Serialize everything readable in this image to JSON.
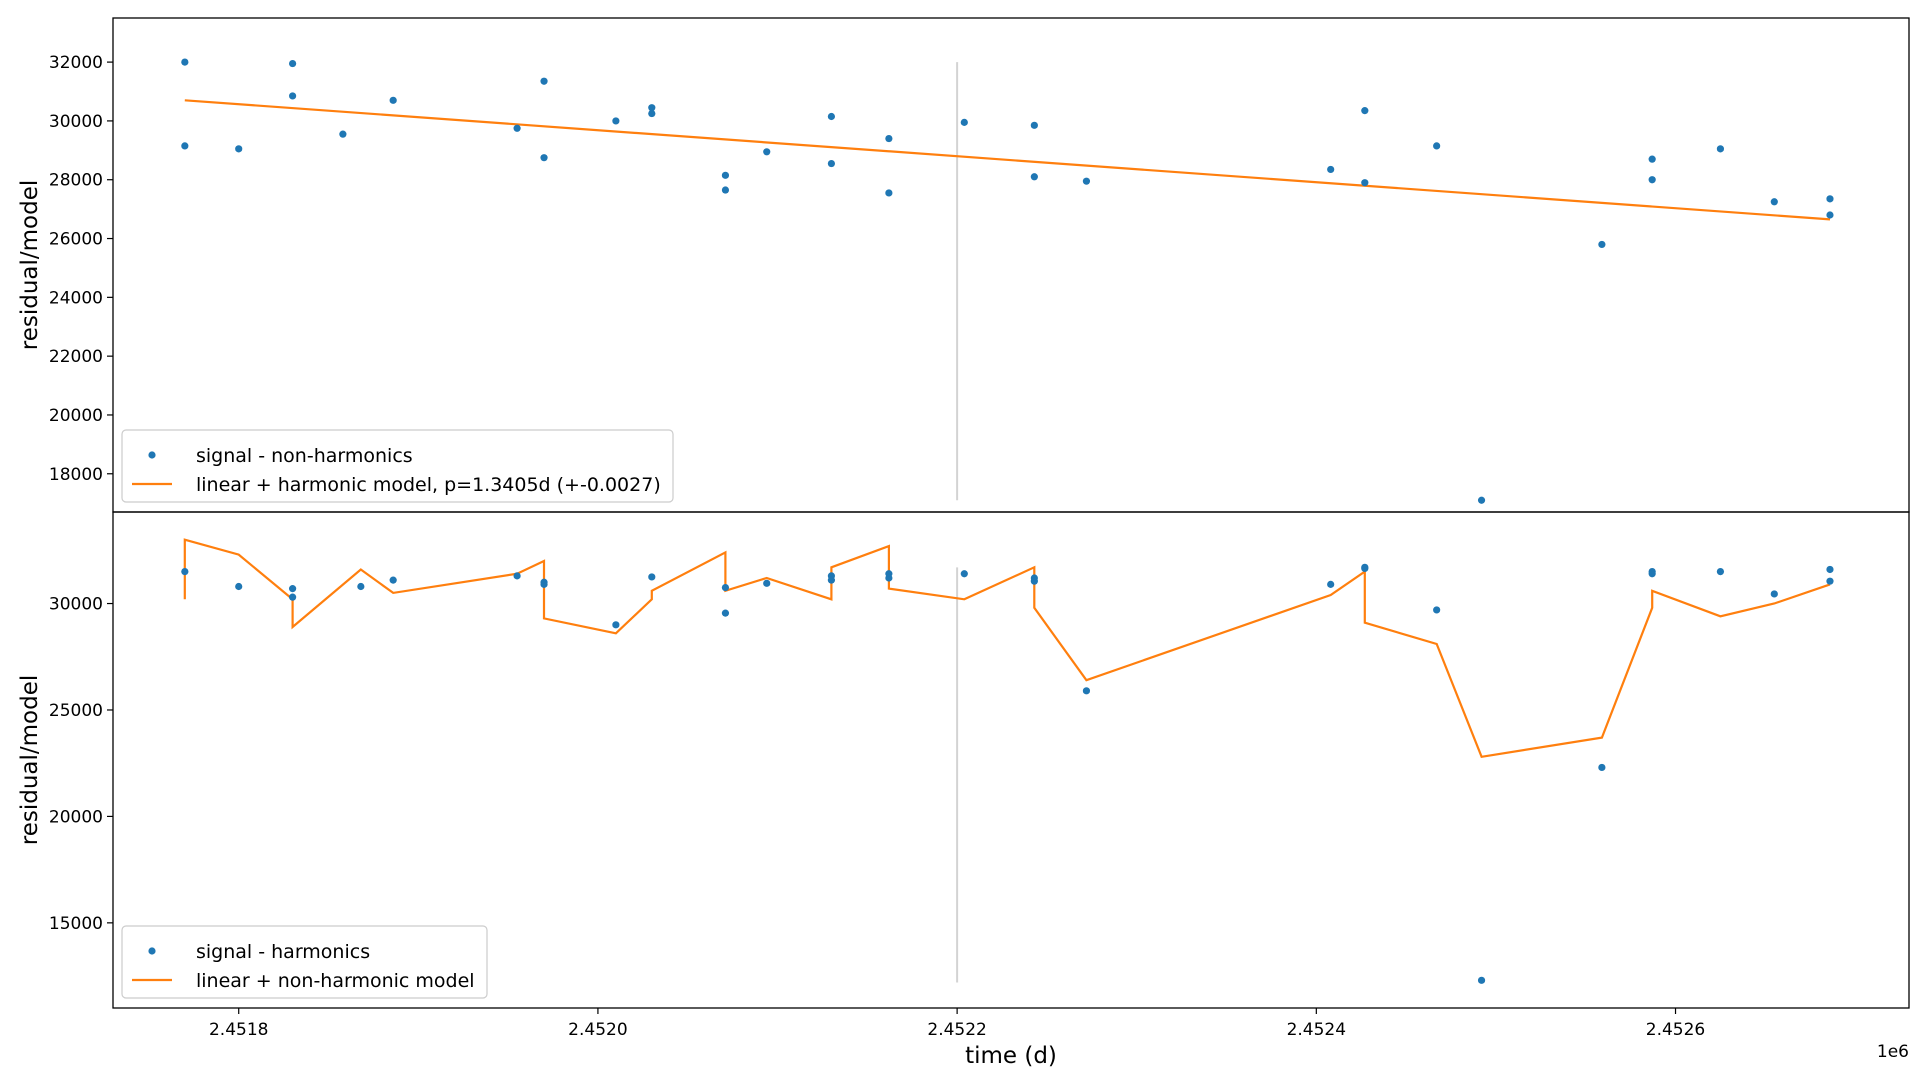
{
  "chart_data": [
    {
      "type": "scatter",
      "panel": "top",
      "xlabel": "",
      "ylabel": "residual/model",
      "xlim": [
        2451730,
        2452730
      ],
      "ylim": [
        16700,
        33500
      ],
      "yticks": [
        18000,
        20000,
        22000,
        24000,
        26000,
        28000,
        30000,
        32000
      ],
      "ytick_labels": [
        "18000",
        "20000",
        "22000",
        "24000",
        "26000",
        "28000",
        "30000",
        "32000"
      ],
      "vline": {
        "x": 2452200,
        "y_from": 17100,
        "y_to": 32000,
        "color": "#d3d3d3"
      },
      "legend_placement": "lower-left",
      "series": [
        {
          "name": "signal - non-harmonics",
          "kind": "scatter",
          "color": "#1f77b4",
          "x": [
            2451770,
            2451770,
            2451800,
            2451830,
            2451830,
            2451858,
            2451886,
            2451955,
            2451970,
            2451970,
            2452010,
            2452030,
            2452030,
            2452071,
            2452071,
            2452094,
            2452130,
            2452130,
            2452162,
            2452162,
            2452204,
            2452243,
            2452243,
            2452272,
            2452408,
            2452427,
            2452427,
            2452467,
            2452492,
            2452559,
            2452587,
            2452587,
            2452625,
            2452655,
            2452686,
            2452686
          ],
          "y": [
            32000,
            29150,
            29050,
            31950,
            30850,
            29550,
            30700,
            29750,
            31350,
            28750,
            30000,
            30450,
            30250,
            28150,
            27650,
            28950,
            30150,
            28550,
            29400,
            27550,
            29950,
            29850,
            28100,
            27950,
            28350,
            30350,
            27900,
            29150,
            17100,
            25800,
            28700,
            28000,
            29050,
            27250,
            27350,
            26800
          ]
        },
        {
          "name": "linear + harmonic model, p=1.3405d (+-0.0027)",
          "kind": "line",
          "color": "#ff7f0e",
          "x": [
            2451770,
            2452686
          ],
          "y": [
            30700,
            26650
          ]
        }
      ]
    },
    {
      "type": "scatter",
      "panel": "bottom",
      "xlabel": "time (d)",
      "ylabel": "residual/model",
      "xlim": [
        2451730,
        2452730
      ],
      "ylim": [
        11000,
        34300
      ],
      "yticks": [
        15000,
        20000,
        25000,
        30000
      ],
      "ytick_labels": [
        "15000",
        "20000",
        "25000",
        "30000"
      ],
      "xticks": [
        2451800,
        2452000,
        2452200,
        2452400,
        2452600
      ],
      "xtick_labels": [
        "2.4518",
        "2.4520",
        "2.4522",
        "2.4524",
        "2.4526"
      ],
      "x_offset_label": "1e6",
      "vline": {
        "x": 2452200,
        "y_from": 12200,
        "y_to": 31700,
        "color": "#d3d3d3"
      },
      "legend_placement": "lower-left",
      "series": [
        {
          "name": "signal - harmonics",
          "kind": "scatter",
          "color": "#1f77b4",
          "x": [
            2451770,
            2451800,
            2451830,
            2451830,
            2451868,
            2451886,
            2451955,
            2451970,
            2451970,
            2452010,
            2452030,
            2452071,
            2452071,
            2452094,
            2452130,
            2452130,
            2452162,
            2452162,
            2452204,
            2452243,
            2452243,
            2452272,
            2452408,
            2452427,
            2452427,
            2452467,
            2452492,
            2452559,
            2452587,
            2452587,
            2452625,
            2452655,
            2452686,
            2452686
          ],
          "y": [
            31500,
            30800,
            30700,
            30300,
            30800,
            31100,
            31300,
            31000,
            30900,
            29000,
            31250,
            30750,
            29550,
            30950,
            31300,
            31100,
            31400,
            31200,
            31400,
            31200,
            31050,
            25900,
            30900,
            31700,
            31650,
            29700,
            12300,
            22300,
            31500,
            31400,
            31500,
            30450,
            31600,
            31050
          ]
        },
        {
          "name": "linear + non-harmonic model",
          "kind": "line",
          "color": "#ff7f0e",
          "x": [
            2451770,
            2451770,
            2451800,
            2451830,
            2451830,
            2451868,
            2451886,
            2451955,
            2451970,
            2451970,
            2452010,
            2452030,
            2452030,
            2452071,
            2452071,
            2452094,
            2452130,
            2452130,
            2452162,
            2452162,
            2452204,
            2452243,
            2452243,
            2452272,
            2452408,
            2452427,
            2452427,
            2452467,
            2452492,
            2452559,
            2452587,
            2452587,
            2452625,
            2452655,
            2452686
          ],
          "y": [
            30200,
            33000,
            32300,
            30200,
            28900,
            31600,
            30500,
            31400,
            32000,
            29300,
            28600,
            30200,
            30600,
            32400,
            30600,
            31200,
            30200,
            31700,
            32700,
            30700,
            30200,
            31700,
            29800,
            26400,
            30400,
            31500,
            29100,
            28100,
            22800,
            23700,
            29800,
            30600,
            29400,
            30000,
            30900
          ]
        }
      ]
    }
  ]
}
